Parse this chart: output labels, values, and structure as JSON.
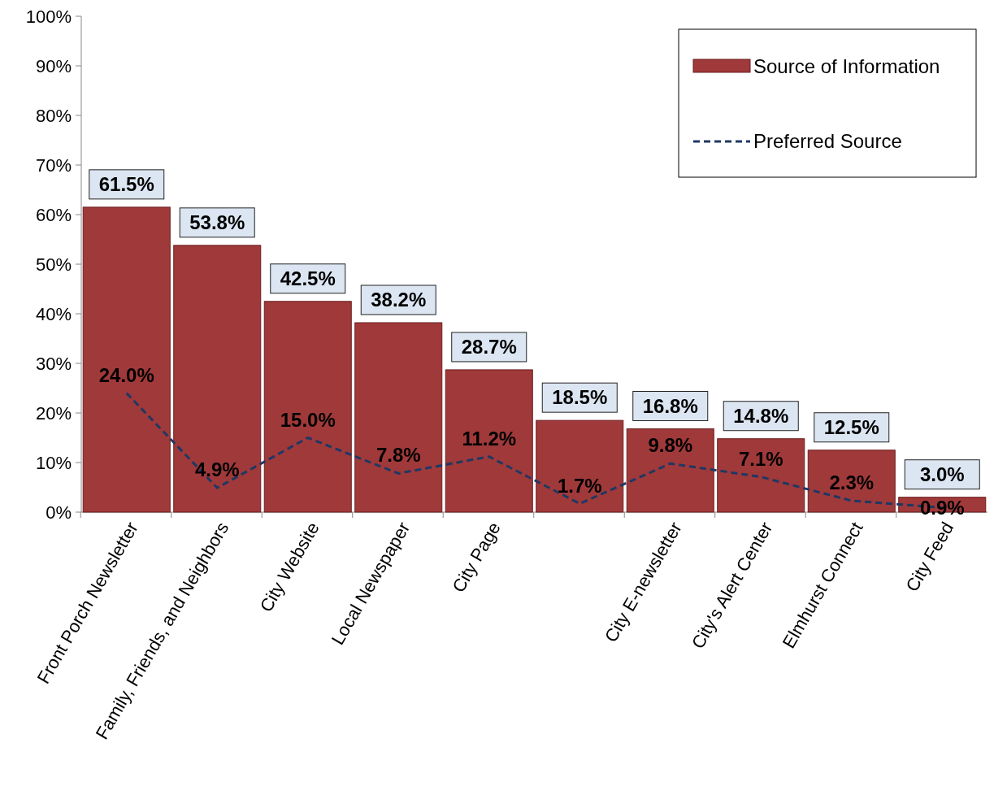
{
  "chart_data": {
    "type": "bar",
    "categories": [
      "Front Porch Newsletter",
      "Family, Friends, and Neighbors",
      "City Website",
      "Local Newspaper",
      "City Page",
      null,
      "City E-newsletter",
      "City's Alert Center",
      "Elmhurst Connect",
      "City Feed"
    ],
    "series": [
      {
        "name": "Source of Information",
        "color": "#a0393a",
        "values": [
          61.5,
          53.8,
          42.5,
          38.2,
          28.7,
          18.5,
          16.8,
          14.8,
          12.5,
          3.0
        ],
        "value_labels": [
          "61.5%",
          "53.8%",
          "42.5%",
          "38.2%",
          "28.7%",
          "18.5%",
          "16.8%",
          "14.8%",
          "12.5%",
          "3.0%"
        ]
      },
      {
        "name": "Preferred Source",
        "type": "line",
        "color": "#1f3864",
        "line_style": "dashed",
        "values": [
          24.0,
          4.9,
          15.0,
          7.8,
          11.2,
          1.7,
          9.8,
          7.1,
          2.3,
          0.9
        ],
        "value_labels": [
          "24.0%",
          "4.9%",
          "15.0%",
          "7.8%",
          "11.2%",
          "1.7%",
          "9.8%",
          "7.1%",
          "2.3%",
          "0.9%"
        ]
      }
    ],
    "ylim": [
      0,
      100
    ],
    "yticks": [
      {
        "value": 0,
        "label": "0%"
      },
      {
        "value": 10,
        "label": "10%"
      },
      {
        "value": 20,
        "label": "20%"
      },
      {
        "value": 30,
        "label": "30%"
      },
      {
        "value": 40,
        "label": "40%"
      },
      {
        "value": 50,
        "label": "50%"
      },
      {
        "value": 60,
        "label": "60%"
      },
      {
        "value": 70,
        "label": "70%"
      },
      {
        "value": 80,
        "label": "80%"
      },
      {
        "value": 90,
        "label": "90%"
      },
      {
        "value": 100,
        "label": "100%"
      }
    ],
    "grid": false,
    "legend": "top right"
  }
}
